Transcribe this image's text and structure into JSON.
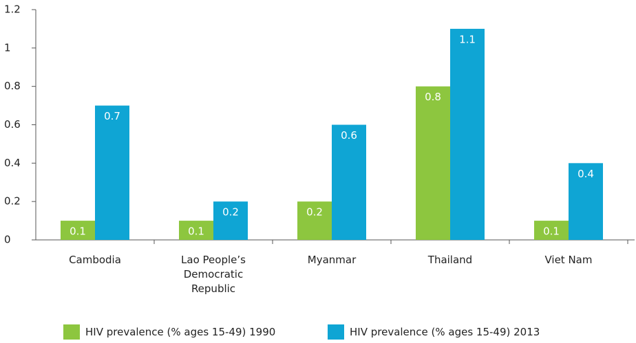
{
  "chart_data": {
    "type": "bar",
    "categories": [
      "Cambodia",
      "Lao People’s Democratic Republic",
      "Myanmar",
      "Thailand",
      "Viet Nam"
    ],
    "series": [
      {
        "name": "HIV prevalence (% ages 15-49) 1990",
        "color": "#8dc63f",
        "values": [
          0.1,
          0.1,
          0.2,
          0.8,
          0.1
        ]
      },
      {
        "name": "HIV prevalence (% ages 15-49) 2013",
        "color": "#0fa5d4",
        "values": [
          0.7,
          0.2,
          0.6,
          1.1,
          0.4
        ]
      }
    ],
    "ylim": [
      0,
      1.2
    ],
    "yticks": [
      0,
      0.2,
      0.4,
      0.6,
      0.8,
      1,
      1.2
    ],
    "grid": false
  }
}
